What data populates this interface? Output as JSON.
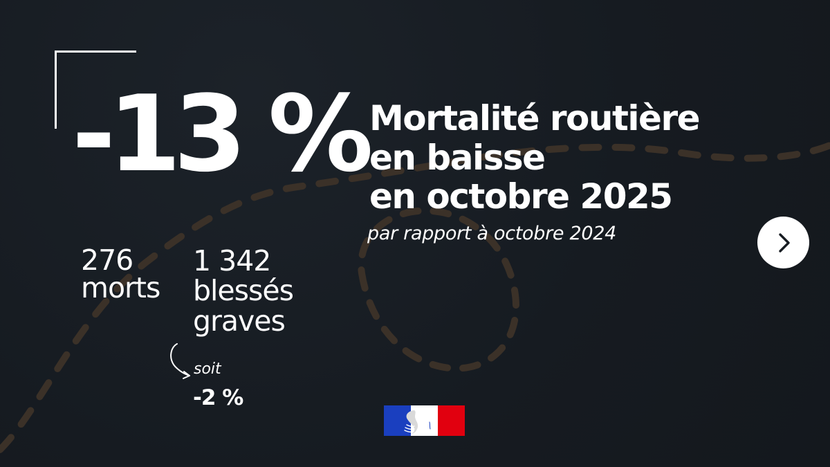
{
  "headline": {
    "percent": "-13 %",
    "line1": "Mortalité routière",
    "line2": "en baisse",
    "line3": "en octobre 2025",
    "comparison": "par rapport à octobre 2024"
  },
  "stats": {
    "deaths": {
      "value": "276",
      "label": "morts"
    },
    "serious_injuries": {
      "value": "1 342",
      "label_line1": "blessés",
      "label_line2": "graves",
      "change_label": "soit",
      "change_value": "-2 %"
    }
  },
  "navigation": {
    "next_icon": "chevron-right-icon"
  },
  "branding": {
    "flag_colors": [
      "#1a3fbf",
      "#ffffff",
      "#e1000f"
    ]
  },
  "colors": {
    "background": "#171c22",
    "text": "#ffffff",
    "decor_dash": "#3a3028"
  }
}
